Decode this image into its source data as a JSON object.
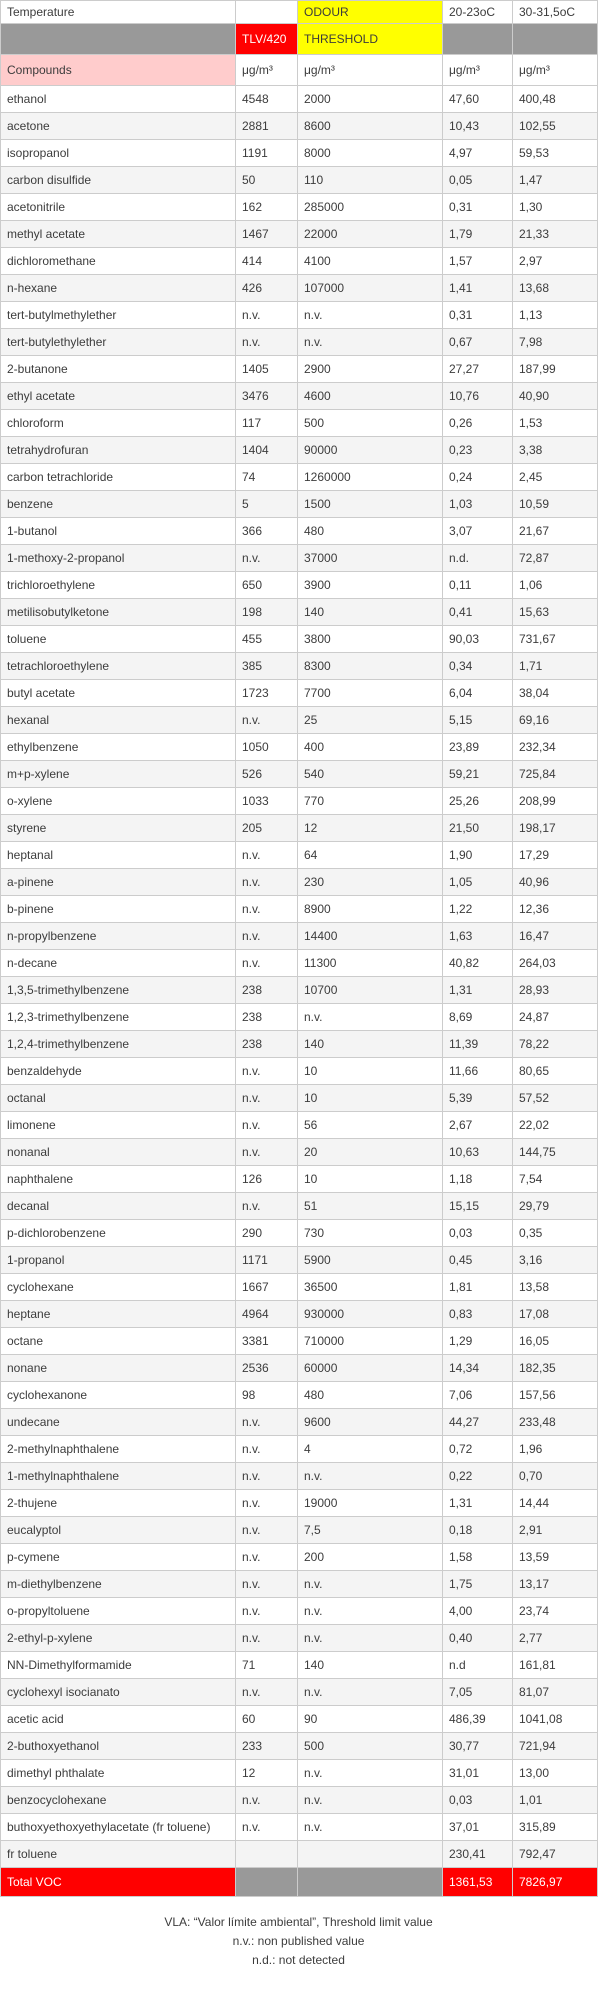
{
  "colors": {
    "red": "#ff0000",
    "yellow": "#ffff00",
    "pink": "#ffcccc",
    "gray": "#999999",
    "altrow": "#f4f4f4",
    "border": "#cccccc"
  },
  "table": {
    "header_row1": {
      "temperature": "Temperature",
      "odour": "ODOUR",
      "temp_20": "20-23oC",
      "temp_30": "30-31,5oC"
    },
    "header_row2": {
      "tlv": "TLV/420",
      "threshold": "THRESHOLD"
    },
    "header_row3": {
      "compounds": "Compounds",
      "unit": "μg/m³"
    },
    "rows": [
      {
        "name": "ethanol",
        "tlv": "4548",
        "odour": "2000",
        "v20": "47,60",
        "v30": "400,48"
      },
      {
        "name": "acetone",
        "tlv": "2881",
        "odour": "8600",
        "v20": "10,43",
        "v30": "102,55"
      },
      {
        "name": "isopropanol",
        "tlv": "1191",
        "odour": "8000",
        "v20": "4,97",
        "v30": "59,53"
      },
      {
        "name": "carbon disulfide",
        "tlv": "50",
        "odour": "110",
        "v20": "0,05",
        "v30": "1,47"
      },
      {
        "name": "acetonitrile",
        "tlv": "162",
        "odour": "285000",
        "v20": "0,31",
        "v30": "1,30"
      },
      {
        "name": "methyl acetate",
        "tlv": "1467",
        "odour": "22000",
        "v20": "1,79",
        "v30": "21,33"
      },
      {
        "name": "dichloromethane",
        "tlv": "414",
        "odour": "4100",
        "v20": "1,57",
        "v30": "2,97"
      },
      {
        "name": "n-hexane",
        "tlv": "426",
        "odour": "107000",
        "v20": "1,41",
        "v30": "13,68"
      },
      {
        "name": "tert-butylmethylether",
        "tlv": "n.v.",
        "odour": "n.v.",
        "v20": "0,31",
        "v30": "1,13"
      },
      {
        "name": "tert-butylethylether",
        "tlv": "n.v.",
        "odour": "n.v.",
        "v20": "0,67",
        "v30": "7,98"
      },
      {
        "name": "2-butanone",
        "tlv": "1405",
        "odour": "2900",
        "v20": "27,27",
        "v30": "187,99"
      },
      {
        "name": "ethyl acetate",
        "tlv": "3476",
        "odour": "4600",
        "v20": "10,76",
        "v30": "40,90"
      },
      {
        "name": "chloroform",
        "tlv": "117",
        "odour": "500",
        "v20": "0,26",
        "v30": "1,53"
      },
      {
        "name": "tetrahydrofuran",
        "tlv": "1404",
        "odour": "90000",
        "v20": "0,23",
        "v30": "3,38"
      },
      {
        "name": "carbon tetrachloride",
        "tlv": "74",
        "odour": "1260000",
        "v20": "0,24",
        "v30": "2,45"
      },
      {
        "name": "benzene",
        "tlv": "5",
        "odour": "1500",
        "v20": "1,03",
        "v30": "10,59"
      },
      {
        "name": "1-butanol",
        "tlv": "366",
        "odour": "480",
        "v20": "3,07",
        "v30": "21,67"
      },
      {
        "name": "1-methoxy-2-propanol",
        "tlv": "n.v.",
        "odour": "37000",
        "v20": "n.d.",
        "v30": "72,87"
      },
      {
        "name": "trichloroethylene",
        "tlv": "650",
        "odour": "3900",
        "v20": "0,11",
        "v30": "1,06"
      },
      {
        "name": "metilisobutylketone",
        "tlv": "198",
        "odour": "140",
        "v20": "0,41",
        "v30": "15,63"
      },
      {
        "name": "toluene",
        "tlv": "455",
        "odour": "3800",
        "v20": "90,03",
        "v30": "731,67"
      },
      {
        "name": "tetrachloroethylene",
        "tlv": "385",
        "odour": "8300",
        "v20": "0,34",
        "v30": "1,71"
      },
      {
        "name": "butyl acetate",
        "tlv": "1723",
        "odour": "7700",
        "v20": "6,04",
        "v30": "38,04"
      },
      {
        "name": "hexanal",
        "tlv": "n.v.",
        "odour": "25",
        "v20": "5,15",
        "v30": "69,16"
      },
      {
        "name": "ethylbenzene",
        "tlv": "1050",
        "odour": "400",
        "v20": "23,89",
        "v30": "232,34"
      },
      {
        "name": "m+p-xylene",
        "tlv": "526",
        "odour": "540",
        "v20": "59,21",
        "v30": "725,84"
      },
      {
        "name": "o-xylene",
        "tlv": "1033",
        "odour": "770",
        "v20": "25,26",
        "v30": "208,99"
      },
      {
        "name": "styrene",
        "tlv": "205",
        "odour": "12",
        "v20": "21,50",
        "v30": "198,17"
      },
      {
        "name": "heptanal",
        "tlv": "n.v.",
        "odour": "64",
        "v20": "1,90",
        "v30": "17,29"
      },
      {
        "name": "a-pinene",
        "tlv": "n.v.",
        "odour": "230",
        "v20": "1,05",
        "v30": "40,96"
      },
      {
        "name": "b-pinene",
        "tlv": "n.v.",
        "odour": "8900",
        "v20": "1,22",
        "v30": "12,36"
      },
      {
        "name": "n-propylbenzene",
        "tlv": "n.v.",
        "odour": "14400",
        "v20": "1,63",
        "v30": "16,47"
      },
      {
        "name": "n-decane",
        "tlv": "n.v.",
        "odour": "11300",
        "v20": "40,82",
        "v30": "264,03"
      },
      {
        "name": "1,3,5-trimethylbenzene",
        "tlv": "238",
        "odour": "10700",
        "v20": "1,31",
        "v30": "28,93"
      },
      {
        "name": "1,2,3-trimethylbenzene",
        "tlv": "238",
        "odour": "n.v.",
        "v20": "8,69",
        "v30": "24,87"
      },
      {
        "name": "1,2,4-trimethylbenzene",
        "tlv": "238",
        "odour": "140",
        "v20": "11,39",
        "v30": "78,22"
      },
      {
        "name": "benzaldehyde",
        "tlv": "n.v.",
        "odour": "10",
        "v20": "11,66",
        "v30": "80,65"
      },
      {
        "name": "octanal",
        "tlv": "n.v.",
        "odour": "10",
        "v20": "5,39",
        "v30": "57,52"
      },
      {
        "name": "limonene",
        "tlv": "n.v.",
        "odour": "56",
        "v20": "2,67",
        "v30": "22,02"
      },
      {
        "name": "nonanal",
        "tlv": "n.v.",
        "odour": "20",
        "v20": "10,63",
        "v30": "144,75"
      },
      {
        "name": "naphthalene",
        "tlv": "126",
        "odour": "10",
        "v20": "1,18",
        "v30": "7,54"
      },
      {
        "name": "decanal",
        "tlv": "n.v.",
        "odour": "51",
        "v20": "15,15",
        "v30": "29,79"
      },
      {
        "name": "p-dichlorobenzene",
        "tlv": "290",
        "odour": "730",
        "v20": "0,03",
        "v30": "0,35"
      },
      {
        "name": "1-propanol",
        "tlv": "1171",
        "odour": "5900",
        "v20": "0,45",
        "v30": "3,16"
      },
      {
        "name": "cyclohexane",
        "tlv": "1667",
        "odour": "36500",
        "v20": "1,81",
        "v30": "13,58"
      },
      {
        "name": "heptane",
        "tlv": "4964",
        "odour": "930000",
        "v20": "0,83",
        "v30": "17,08"
      },
      {
        "name": "octane",
        "tlv": "3381",
        "odour": "710000",
        "v20": "1,29",
        "v30": "16,05"
      },
      {
        "name": "nonane",
        "tlv": "2536",
        "odour": "60000",
        "v20": "14,34",
        "v30": "182,35"
      },
      {
        "name": "cyclohexanone",
        "tlv": "98",
        "odour": "480",
        "v20": "7,06",
        "v30": "157,56"
      },
      {
        "name": "undecane",
        "tlv": "n.v.",
        "odour": "9600",
        "v20": "44,27",
        "v30": "233,48"
      },
      {
        "name": "2-methylnaphthalene",
        "tlv": "n.v.",
        "odour": "4",
        "v20": "0,72",
        "v30": "1,96"
      },
      {
        "name": "1-methylnaphthalene",
        "tlv": "n.v.",
        "odour": "n.v.",
        "v20": "0,22",
        "v30": "0,70"
      },
      {
        "name": "2-thujene",
        "tlv": "n.v.",
        "odour": "19000",
        "v20": "1,31",
        "v30": "14,44"
      },
      {
        "name": "eucalyptol",
        "tlv": "n.v.",
        "odour": "7,5",
        "v20": "0,18",
        "v30": "2,91"
      },
      {
        "name": "p-cymene",
        "tlv": "n.v.",
        "odour": "200",
        "v20": "1,58",
        "v30": "13,59"
      },
      {
        "name": "m-diethylbenzene",
        "tlv": "n.v.",
        "odour": "n.v.",
        "v20": "1,75",
        "v30": "13,17"
      },
      {
        "name": "o-propyltoluene",
        "tlv": "n.v.",
        "odour": "n.v.",
        "v20": "4,00",
        "v30": "23,74"
      },
      {
        "name": "2-ethyl-p-xylene",
        "tlv": "n.v.",
        "odour": "n.v.",
        "v20": "0,40",
        "v30": "2,77"
      },
      {
        "name": "NN-Dimethylformamide",
        "tlv": "71",
        "odour": "140",
        "v20": "n.d",
        "v30": "161,81"
      },
      {
        "name": "cyclohexyl isocianato",
        "tlv": "n.v.",
        "odour": "n.v.",
        "v20": "7,05",
        "v30": "81,07"
      },
      {
        "name": "acetic acid",
        "tlv": "60",
        "odour": "90",
        "v20": "486,39",
        "v30": "1041,08"
      },
      {
        "name": "2-buthoxyethanol",
        "tlv": "233",
        "odour": "500",
        "v20": "30,77",
        "v30": "721,94"
      },
      {
        "name": "dimethyl phthalate",
        "tlv": "12",
        "odour": "n.v.",
        "v20": "31,01",
        "v30": "13,00"
      },
      {
        "name": "benzocyclohexane",
        "tlv": "n.v.",
        "odour": "n.v.",
        "v20": "0,03",
        "v30": "1,01"
      },
      {
        "name": "buthoxyethoxyethylacetate (fr toluene)",
        "tlv": "n.v.",
        "odour": "n.v.",
        "v20": "37,01",
        "v30": "315,89"
      },
      {
        "name": "fr toluene",
        "tlv": "",
        "odour": "",
        "v20": "230,41",
        "v30": "792,47"
      }
    ],
    "total": {
      "label": "Total VOC",
      "v20": "1361,53",
      "v30": "7826,97"
    }
  },
  "footer": {
    "line1": "VLA: “Valor límite ambiental”, Threshold limit value",
    "line2": "n.v.: non published value",
    "line3": "n.d.: not detected"
  }
}
